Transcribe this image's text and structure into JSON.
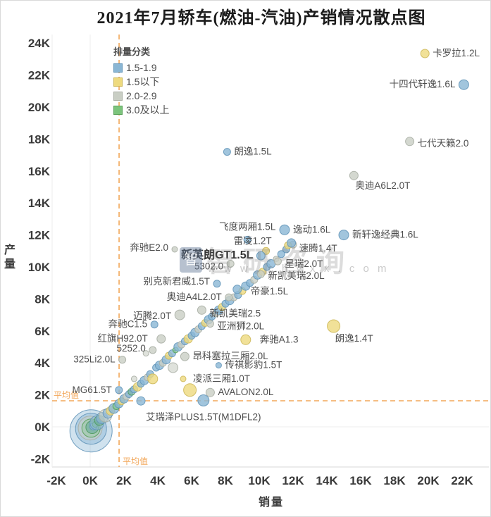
{
  "title": "2021年7月轿车(燃油-汽油)产销情况散点图",
  "watermark": {
    "logo_glyph": "智",
    "brand": "智研咨询",
    "url": "w w w . c h y x x . c o m"
  },
  "legend": {
    "title": "排量分类",
    "items": [
      {
        "key": "b",
        "label": "1.5-1.9"
      },
      {
        "key": "y",
        "label": "1.5以下"
      },
      {
        "key": "g",
        "label": "2.0-2.9"
      },
      {
        "key": "gr",
        "label": "3.0及以上"
      }
    ]
  },
  "axes": {
    "x_title": "销量",
    "y_title": "产量"
  },
  "chart_data": {
    "type": "scatter",
    "title": "2021年7月轿车(燃油-汽油)产销情况散点图",
    "xlabel": "销量",
    "ylabel": "产量",
    "unit": "K",
    "xlim": [
      -2,
      22
    ],
    "ylim": [
      -2,
      24
    ],
    "x_ticks": [
      -2,
      0,
      2,
      4,
      6,
      8,
      10,
      12,
      14,
      16,
      18,
      20,
      22
    ],
    "y_ticks": [
      -2,
      0,
      2,
      4,
      6,
      8,
      10,
      12,
      14,
      16,
      18,
      20,
      22,
      24
    ],
    "grid": "zero-lines-only",
    "legend_position": "top-left-inside",
    "mean_lines": {
      "label": "平均值",
      "x_value": 1.71,
      "y_value": 1.63,
      "color": "#f2a75a"
    },
    "colors": {
      "b": {
        "fill": "#8ab6d4",
        "stroke": "#6496b9"
      },
      "y": {
        "fill": "#eeda7e",
        "stroke": "#cdb85a"
      },
      "g": {
        "fill": "#c9cec4",
        "stroke": "#a9aea4"
      },
      "gr": {
        "fill": "#7cc47c",
        "stroke": "#58a058"
      },
      "t": {
        "fill": "#6fae9e",
        "stroke": "#4f9a5f"
      }
    },
    "points": [
      {
        "x": 0.05,
        "y": -0.25,
        "r": 30,
        "c": "b",
        "o": 0.4
      },
      {
        "x": 0.05,
        "y": -0.12,
        "r": 22,
        "c": "b",
        "o": 0.45
      },
      {
        "x": 0.0,
        "y": -0.08,
        "r": 17,
        "c": "g",
        "o": 0.55
      },
      {
        "x": 0.05,
        "y": -0.08,
        "r": 13,
        "c": "gr",
        "o": 0.3
      },
      {
        "x": 0.12,
        "y": -0.02,
        "r": 9,
        "c": "t",
        "o": 0.65
      },
      {
        "x": 0.18,
        "y": 0.02,
        "r": 5,
        "c": "b"
      },
      {
        "x": 0.3,
        "y": 0.15,
        "r": 4,
        "c": "gr",
        "o": 0.6
      },
      {
        "x": 0.4,
        "y": 0.25,
        "r": 10,
        "c": "b",
        "o": 0.55
      },
      {
        "x": 0.55,
        "y": 0.4,
        "r": 7,
        "c": "t",
        "o": 0.6
      },
      {
        "x": 0.7,
        "y": 0.55,
        "r": 8,
        "c": "b",
        "o": 0.6
      },
      {
        "x": 0.9,
        "y": 0.7,
        "r": 9,
        "c": "g",
        "o": 0.6
      },
      {
        "x": 1.05,
        "y": 0.85,
        "r": 7,
        "c": "b",
        "o": 0.65
      },
      {
        "x": 1.2,
        "y": 1.0,
        "r": 6,
        "c": "y"
      },
      {
        "x": 1.4,
        "y": 1.15,
        "r": 7,
        "c": "b"
      },
      {
        "x": 1.55,
        "y": 1.3,
        "r": 5,
        "c": "gr",
        "o": 0.6
      },
      {
        "x": 1.7,
        "y": 1.45,
        "r": 6,
        "c": "b"
      },
      {
        "x": 1.85,
        "y": 1.6,
        "r": 5,
        "c": "y"
      },
      {
        "x": 2.0,
        "y": 1.75,
        "r": 6,
        "c": "b"
      },
      {
        "x": 2.15,
        "y": 1.9,
        "r": 5,
        "c": "g"
      },
      {
        "x": 2.3,
        "y": 2.05,
        "r": 5,
        "c": "b"
      },
      {
        "x": 2.45,
        "y": 2.2,
        "r": 5,
        "c": "t",
        "o": 0.6
      },
      {
        "x": 2.6,
        "y": 2.35,
        "r": 5,
        "c": "b"
      },
      {
        "x": 2.8,
        "y": 2.5,
        "r": 6,
        "c": "y"
      },
      {
        "x": 3.0,
        "y": 2.7,
        "r": 5,
        "c": "b"
      },
      {
        "x": 3.2,
        "y": 2.9,
        "r": 6,
        "c": "b"
      },
      {
        "x": 3.4,
        "y": 3.1,
        "r": 5,
        "c": "g"
      },
      {
        "x": 3.55,
        "y": 3.3,
        "r": 5,
        "c": "b"
      },
      {
        "x": 3.7,
        "y": 3.0,
        "r": 7,
        "c": "y"
      },
      {
        "x": 3.9,
        "y": 3.7,
        "r": 5,
        "c": "b"
      },
      {
        "x": 4.1,
        "y": 3.85,
        "r": 6,
        "c": "b"
      },
      {
        "x": 4.3,
        "y": 4.0,
        "r": 5,
        "c": "g"
      },
      {
        "x": 4.5,
        "y": 4.2,
        "r": 6,
        "c": "b"
      },
      {
        "x": 4.65,
        "y": 4.45,
        "r": 5,
        "c": "y"
      },
      {
        "x": 4.85,
        "y": 4.6,
        "r": 5,
        "c": "b"
      },
      {
        "x": 4.9,
        "y": 3.7,
        "r": 7,
        "c": "g",
        "o": 0.6
      },
      {
        "x": 5.05,
        "y": 4.8,
        "r": 4,
        "c": "gr",
        "o": 0.6
      },
      {
        "x": 5.2,
        "y": 5.0,
        "r": 6,
        "c": "b"
      },
      {
        "x": 5.4,
        "y": 5.15,
        "r": 5,
        "c": "g"
      },
      {
        "x": 5.6,
        "y": 5.35,
        "r": 5,
        "c": "b"
      },
      {
        "x": 5.8,
        "y": 5.5,
        "r": 6,
        "c": "y"
      },
      {
        "x": 6.0,
        "y": 5.7,
        "r": 5,
        "c": "b"
      },
      {
        "x": 6.2,
        "y": 5.9,
        "r": 6,
        "c": "b"
      },
      {
        "x": 6.4,
        "y": 6.1,
        "r": 5,
        "c": "g"
      },
      {
        "x": 6.6,
        "y": 6.3,
        "r": 5,
        "c": "b"
      },
      {
        "x": 6.8,
        "y": 6.5,
        "r": 5,
        "c": "y"
      },
      {
        "x": 7.0,
        "y": 6.7,
        "r": 6,
        "c": "b"
      },
      {
        "x": 7.2,
        "y": 6.9,
        "r": 5,
        "c": "b"
      },
      {
        "x": 7.45,
        "y": 7.1,
        "r": 5,
        "c": "g"
      },
      {
        "x": 7.6,
        "y": 7.3,
        "r": 6,
        "c": "b"
      },
      {
        "x": 7.8,
        "y": 7.5,
        "r": 5,
        "c": "y"
      },
      {
        "x": 8.0,
        "y": 7.7,
        "r": 5,
        "c": "b"
      },
      {
        "x": 8.25,
        "y": 7.9,
        "r": 6,
        "c": "b"
      },
      {
        "x": 8.5,
        "y": 8.1,
        "r": 5,
        "c": "g"
      },
      {
        "x": 8.75,
        "y": 8.25,
        "r": 5,
        "c": "b"
      },
      {
        "x": 9.0,
        "y": 8.5,
        "r": 5,
        "c": "y"
      },
      {
        "x": 9.2,
        "y": 8.8,
        "r": 6,
        "c": "b"
      },
      {
        "x": 9.45,
        "y": 9.0,
        "r": 5,
        "c": "b"
      },
      {
        "x": 9.7,
        "y": 9.2,
        "r": 5,
        "c": "g"
      },
      {
        "x": 9.9,
        "y": 9.5,
        "r": 6,
        "c": "b"
      },
      {
        "x": 10.2,
        "y": 9.7,
        "r": 5,
        "c": "y"
      },
      {
        "x": 10.45,
        "y": 10.0,
        "r": 5,
        "c": "b"
      },
      {
        "x": 10.7,
        "y": 10.2,
        "r": 6,
        "c": "b"
      },
      {
        "x": 11.0,
        "y": 10.5,
        "r": 4,
        "c": "g"
      },
      {
        "x": 11.3,
        "y": 10.8,
        "r": 5,
        "c": "b"
      },
      {
        "x": 11.6,
        "y": 11.1,
        "r": 5,
        "c": "b"
      },
      {
        "x": 12.0,
        "y": 11.4,
        "r": 5,
        "c": "g"
      },
      {
        "x": 11.7,
        "y": 11.35,
        "r": 5,
        "c": "y"
      },
      {
        "x": 3.0,
        "y": 1.62,
        "r": 6,
        "c": "b"
      },
      {
        "x": 5.9,
        "y": 2.3,
        "r": 9,
        "c": "y"
      },
      {
        "x": 2.6,
        "y": 3.0,
        "r": 4,
        "c": "g",
        "o": 0.6
      },
      {
        "x": 3.3,
        "y": 4.6,
        "r": 4,
        "c": "g",
        "o": 0.6
      },
      {
        "name": "卡罗拉1.2L",
        "x": 19.8,
        "y": 23.35,
        "r": 6,
        "c": "y",
        "lp": "right"
      },
      {
        "name": "十四代轩逸1.6L",
        "x": 22.1,
        "y": 21.4,
        "r": 7,
        "c": "b",
        "lp": "left"
      },
      {
        "name": "七代天籁2.0",
        "x": 18.9,
        "y": 17.85,
        "r": 6,
        "c": "g",
        "lp": "right",
        "dy": 3
      },
      {
        "name": "朗逸1.5L",
        "x": 8.1,
        "y": 17.2,
        "r": 5,
        "c": "b",
        "lp": "right"
      },
      {
        "name": "奥迪A6L2.0T",
        "x": 15.6,
        "y": 15.72,
        "r": 6,
        "c": "g",
        "lp": "below-right"
      },
      {
        "name": "飞度两厢1.5L",
        "x": 9.3,
        "y": 11.7,
        "r": 5,
        "c": "b",
        "lp": "above",
        "dy": -4
      },
      {
        "name": "逸动1.6L",
        "x": 11.5,
        "y": 12.32,
        "r": 7,
        "c": "b",
        "lp": "right"
      },
      {
        "name": "雷凌1.2T",
        "x": 10.4,
        "y": 11.0,
        "r": 5,
        "c": "y",
        "lp": "above-left",
        "dx": 10
      },
      {
        "name": "新轩逸经典1.6L",
        "x": 15.0,
        "y": 12.0,
        "r": 7,
        "c": "b",
        "lp": "right"
      },
      {
        "name": "速腾1.4T",
        "x": 11.9,
        "y": 11.5,
        "r": 6,
        "c": "b",
        "lp": "right",
        "dy": 8
      },
      {
        "name": "新英朗GT1.5L",
        "x": 10.1,
        "y": 10.7,
        "r": 6,
        "c": "b",
        "lp": "left",
        "bold": true
      },
      {
        "name": "星瑞2.0T",
        "x": 11.1,
        "y": 10.35,
        "r": 5,
        "c": "g",
        "lp": "right",
        "dy": 4
      },
      {
        "name": "5302.0",
        "x": 8.3,
        "y": 10.2,
        "r": 5,
        "c": "g",
        "lp": "left",
        "dy": 4
      },
      {
        "name": "新凯美瑞2.0L",
        "x": 10.1,
        "y": 9.55,
        "r": 5,
        "c": "g",
        "lp": "right",
        "dy": 3
      },
      {
        "name": "别克新君威1.5T",
        "x": 7.5,
        "y": 8.95,
        "r": 5,
        "c": "b",
        "lp": "left",
        "dy": -3
      },
      {
        "name": "帝豪1.5L",
        "x": 8.7,
        "y": 8.6,
        "r": 6,
        "c": "b",
        "lp": "right",
        "dx": 8,
        "dy": 3
      },
      {
        "name": "奥迪A4L2.0T",
        "x": 8.2,
        "y": 8.1,
        "r": 5,
        "c": "g",
        "lp": "left"
      },
      {
        "name": "新凯美瑞2.5",
        "x": 6.6,
        "y": 7.3,
        "r": 6,
        "c": "g",
        "lp": "right",
        "dy": 5
      },
      {
        "name": "亚洲狮2.0L",
        "x": 7.1,
        "y": 6.45,
        "r": 5,
        "c": "g",
        "lp": "right",
        "dy": 4
      },
      {
        "name": "迈腾2.0T",
        "x": 5.3,
        "y": 7.0,
        "r": 7,
        "c": "g",
        "lp": "left",
        "dy": 2
      },
      {
        "name": "奔驰C1.5",
        "x": 3.8,
        "y": 6.4,
        "r": 5,
        "c": "b",
        "lp": "left"
      },
      {
        "name": "红旗H92.0T",
        "x": 4.2,
        "y": 5.5,
        "r": 6,
        "c": "g",
        "lp": "left",
        "dx": -8
      },
      {
        "name": "5252.0",
        "x": 3.7,
        "y": 4.8,
        "r": 5,
        "c": "g",
        "lp": "left",
        "dy": -2
      },
      {
        "name": "325Li2.0L",
        "x": 1.9,
        "y": 4.2,
        "r": 5,
        "c": "g",
        "lp": "left"
      },
      {
        "name": "MG61.5T",
        "x": 1.7,
        "y": 2.3,
        "r": 5,
        "c": "b",
        "lp": "left"
      },
      {
        "name": "昂科塞拉三厢2.0L",
        "x": 5.6,
        "y": 4.4,
        "r": 6,
        "c": "g",
        "lp": "right"
      },
      {
        "name": "传祺影豹1.5T",
        "x": 7.6,
        "y": 3.85,
        "r": 4,
        "c": "b",
        "lp": "right"
      },
      {
        "name": "凌派三厢1.0T",
        "x": 5.5,
        "y": 3.0,
        "r": 4,
        "c": "y",
        "lp": "right",
        "dx": 5
      },
      {
        "name": "AVALON2.0L",
        "x": 7.1,
        "y": 2.15,
        "r": 6,
        "c": "g",
        "lp": "right"
      },
      {
        "name": "艾瑞泽PLUS1.5T(M1DFL2)",
        "x": 6.7,
        "y": 1.65,
        "r": 8,
        "c": "b",
        "lp": "below",
        "dy": 6
      },
      {
        "name": "奔驰E2.0",
        "x": 5.0,
        "y": 11.1,
        "r": 4,
        "c": "g",
        "lp": "left",
        "dy": -2
      },
      {
        "name": "奔驰A1.3",
        "x": 9.2,
        "y": 5.45,
        "r": 7,
        "c": "y",
        "lp": "right",
        "dx": 8
      },
      {
        "name": "朗逸1.4T",
        "x": 14.4,
        "y": 6.3,
        "r": 9,
        "c": "y",
        "lp": "below-right"
      }
    ]
  }
}
